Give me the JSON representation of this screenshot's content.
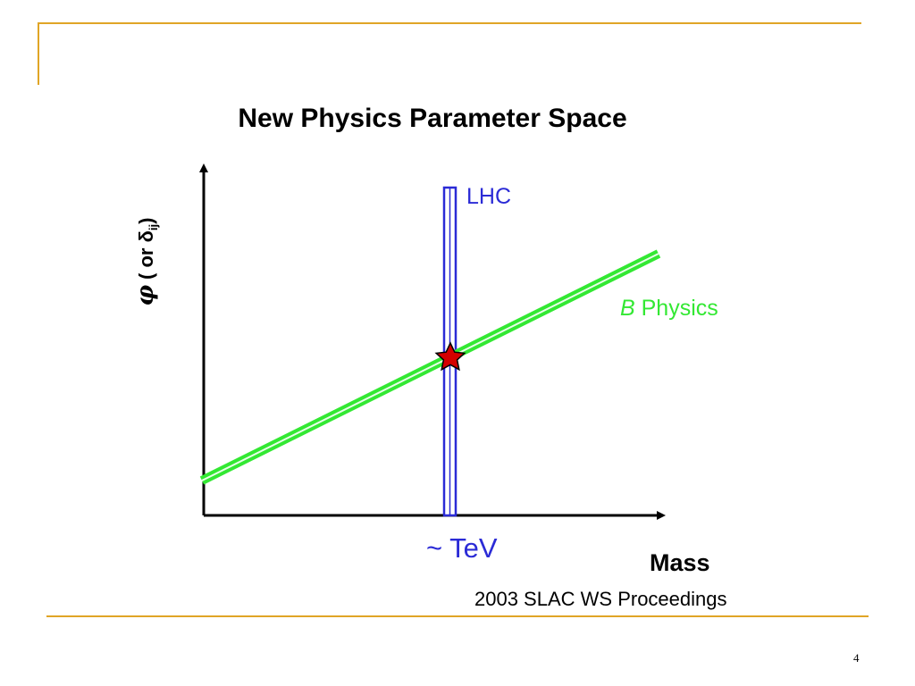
{
  "slide": {
    "title": "New Physics Parameter Space",
    "citation": "2003 SLAC WS Proceedings",
    "page_number": "4"
  },
  "diagram": {
    "y_axis_label": {
      "phi": "φ",
      "paren_text": "( or δ",
      "subscript": "ij",
      "close": ")"
    },
    "x_axis_label": "Mass",
    "x_marker_label": "~ TeV",
    "lhc_label": "LHC",
    "b_physics_label": {
      "italic": "B",
      "rest": " Physics"
    },
    "colors": {
      "accent_rule": "#E0A526",
      "lhc": "#2B2BD6",
      "b_physics": "#33E833",
      "star_fill": "#D40000",
      "star_outline": "#000000"
    },
    "marker_icon": "star-icon"
  }
}
